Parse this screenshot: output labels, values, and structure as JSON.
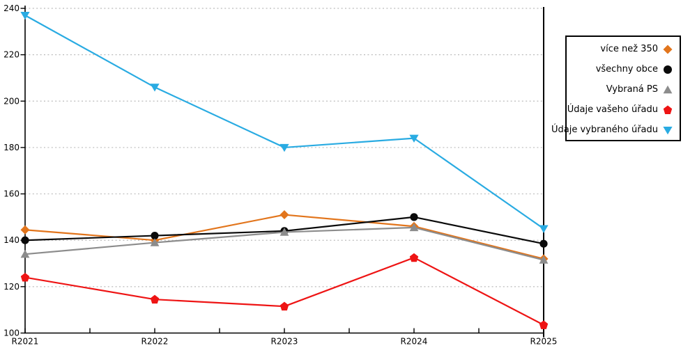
{
  "chart_data": {
    "type": "line",
    "title": "",
    "xlabel": "",
    "ylabel": "",
    "x_categories": [
      "R2021",
      "R2022",
      "R2023",
      "R2024",
      "R2025"
    ],
    "series": [
      {
        "name": "více než 350",
        "color": "#E2751C",
        "marker": "diamond",
        "values": [
          144.5,
          140,
          151,
          146,
          132
        ]
      },
      {
        "name": "všechny obce",
        "color": "#0A0A0A",
        "marker": "circle",
        "values": [
          140,
          142,
          144,
          150,
          138.5
        ]
      },
      {
        "name": "Vybraná PS",
        "color": "#8C8C8C",
        "marker": "triangle-up",
        "values": [
          134,
          139,
          143.5,
          145.5,
          131.5
        ]
      },
      {
        "name": "Údaje vašeho úřadu",
        "color": "#EE1414",
        "marker": "pentagon",
        "values": [
          124,
          114.5,
          111.5,
          132.5,
          103.5
        ]
      },
      {
        "name": "Údaje vybraného úřadu",
        "color": "#29ABE2",
        "marker": "triangle-down",
        "values": [
          237,
          206,
          180,
          184,
          145
        ]
      }
    ],
    "ylim": [
      100,
      240
    ],
    "yticks": [
      100,
      120,
      140,
      160,
      180,
      200,
      220,
      240
    ],
    "grid": "horizontal-dotted",
    "gridline_color": "#BBBBBB",
    "axis_color": "#000000",
    "legend_position": "right"
  }
}
